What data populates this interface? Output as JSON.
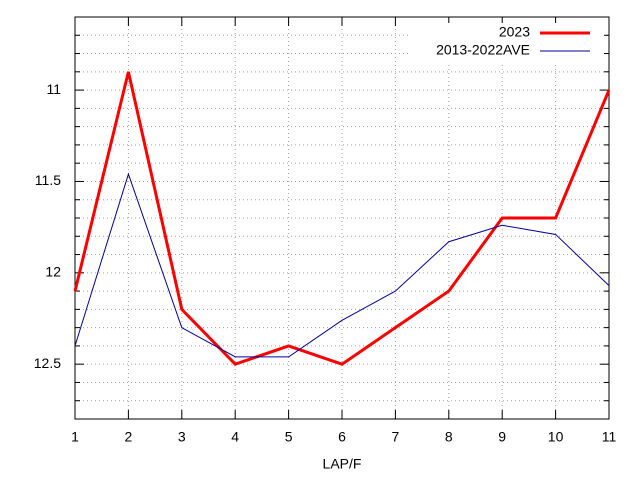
{
  "chart_data": {
    "type": "line",
    "xlabel": "LAP/F",
    "x": [
      1,
      2,
      3,
      4,
      5,
      6,
      7,
      8,
      9,
      10,
      11
    ],
    "series": [
      {
        "name": "2023",
        "color": "#ff0000",
        "width": 3,
        "values": [
          12.1,
          10.9,
          12.2,
          12.5,
          12.4,
          12.5,
          12.3,
          12.1,
          11.7,
          11.7,
          11.0
        ]
      },
      {
        "name": "2013-2022AVE",
        "color": "#0000a0",
        "width": 1,
        "values": [
          12.4,
          11.46,
          12.3,
          12.46,
          12.46,
          12.26,
          12.1,
          11.83,
          11.74,
          11.79,
          12.07
        ]
      }
    ],
    "xlim": [
      1,
      11
    ],
    "xticks": [
      1,
      2,
      3,
      4,
      5,
      6,
      7,
      8,
      9,
      10,
      11
    ],
    "ylim": [
      10.6,
      12.8
    ],
    "y_reversed": true,
    "yticks": [
      11,
      11.5,
      12,
      12.5
    ],
    "y_minor_ticks": [
      10.7,
      10.8,
      10.9,
      11.1,
      11.2,
      11.3,
      11.4,
      11.6,
      11.7,
      11.8,
      11.9,
      12.1,
      12.2,
      12.3,
      12.4,
      12.6,
      12.7
    ],
    "grid": true,
    "legend": "top-right"
  }
}
